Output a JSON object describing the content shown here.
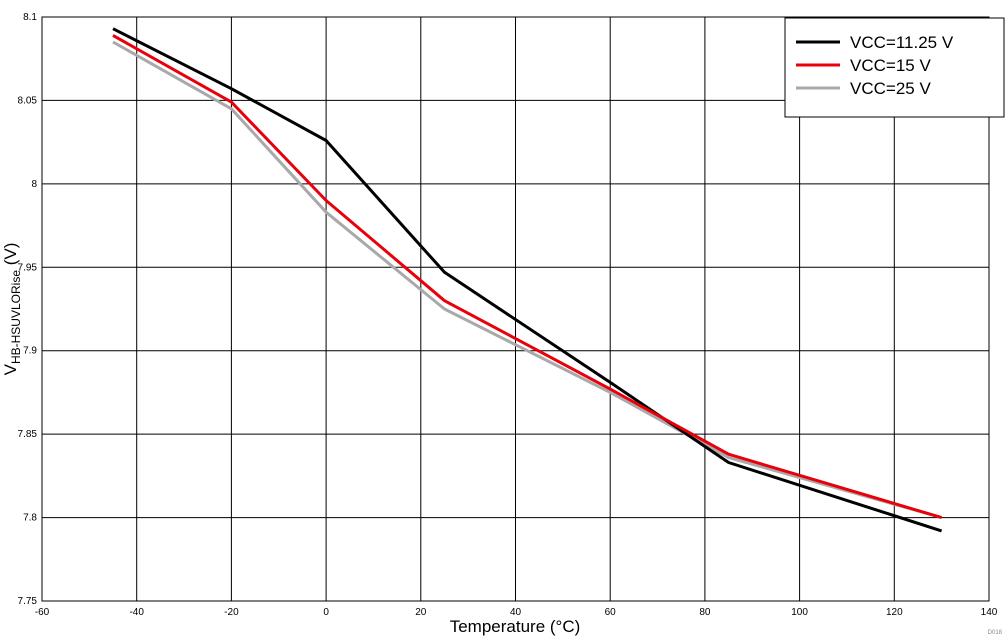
{
  "chart_data": {
    "type": "line",
    "xlabel": "Temperature (°C)",
    "ylabel_main": "V",
    "ylabel_sub": "HB-HSUVLORise",
    "ylabel_unit": " (V)",
    "xlim": [
      -60,
      140
    ],
    "ylim": [
      7.75,
      8.1
    ],
    "xticks": [
      -60,
      -40,
      -20,
      0,
      20,
      40,
      60,
      80,
      100,
      120,
      140
    ],
    "yticks": [
      7.75,
      7.8,
      7.85,
      7.9,
      7.95,
      8.0,
      8.05,
      8.1
    ],
    "xtick_labels": [
      "-60",
      "-40",
      "-20",
      "0",
      "20",
      "40",
      "60",
      "80",
      "100",
      "120",
      "140"
    ],
    "ytick_labels": [
      "7.75",
      "7.8",
      "7.85",
      "7.9",
      "7.95",
      "8",
      "8.05",
      "8.1"
    ],
    "grid": true,
    "legend_position": "top-right",
    "series": [
      {
        "name": "VCC=11.25 V",
        "color": "#000000",
        "x": [
          -45,
          -20,
          0,
          25,
          60,
          85,
          130
        ],
        "y": [
          8.093,
          8.057,
          8.026,
          7.947,
          7.881,
          7.833,
          7.792
        ]
      },
      {
        "name": "VCC=15 V",
        "color": "#e8000b",
        "x": [
          -45,
          -20,
          0,
          25,
          60,
          85,
          130
        ],
        "y": [
          8.089,
          8.049,
          7.99,
          7.93,
          7.877,
          7.838,
          7.8
        ]
      },
      {
        "name": "VCC=25 V",
        "color": "#a9a9a9",
        "x": [
          -45,
          -20,
          0,
          25,
          60,
          85,
          130
        ],
        "y": [
          8.085,
          8.045,
          7.983,
          7.925,
          7.875,
          7.836,
          7.8
        ]
      }
    ],
    "footnote": "D018"
  }
}
